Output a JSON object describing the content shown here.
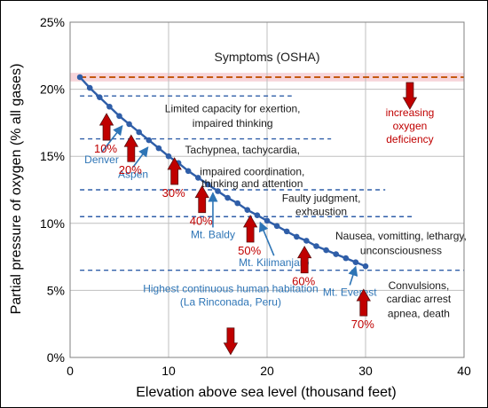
{
  "chart_data": {
    "type": "line",
    "xlabel": "Elevation above sea level (thousand feet)",
    "ylabel": "Partial pressure of oxygen (% all gases)",
    "xlim": [
      0,
      40
    ],
    "ylim": [
      0,
      25
    ],
    "xticks": [
      0,
      10,
      20,
      30,
      40
    ],
    "xtick_labels": [
      "0",
      "10",
      "20",
      "30",
      "40"
    ],
    "yticks": [
      0,
      5,
      10,
      15,
      20,
      25
    ],
    "ytick_labels": [
      "0%",
      "5%",
      "10%",
      "15%",
      "20%",
      "25%"
    ],
    "grid": true,
    "series": [
      {
        "x": [
          1,
          2,
          3,
          4,
          5,
          6,
          7,
          8,
          9,
          10,
          11,
          12,
          13,
          14,
          15,
          16,
          17,
          18,
          19,
          20,
          21,
          22,
          23,
          24,
          25,
          26,
          27,
          28,
          29,
          30
        ],
        "y": [
          20.9,
          20.1,
          19.4,
          18.7,
          18.0,
          17.4,
          16.8,
          16.2,
          15.6,
          15.0,
          14.5,
          13.9,
          13.4,
          12.9,
          12.4,
          11.9,
          11.5,
          11.0,
          10.6,
          10.2,
          9.8,
          9.4,
          9.0,
          8.7,
          8.3,
          8.0,
          7.7,
          7.4,
          7.1,
          6.8
        ],
        "color": "#2f5ea8"
      }
    ],
    "threshold_lines": [
      {
        "y": 20.9,
        "x_range": [
          1,
          40
        ],
        "style": "dashed",
        "color": "#c55a11"
      },
      {
        "y": 19.5,
        "x_range": [
          1,
          22.5
        ],
        "style": "dashed",
        "color": "#2f5ea8"
      },
      {
        "y": 16.3,
        "x_range": [
          1,
          26.5
        ],
        "style": "dashed",
        "color": "#2f5ea8"
      },
      {
        "y": 12.5,
        "x_range": [
          1,
          32
        ],
        "style": "dashed",
        "color": "#2f5ea8"
      },
      {
        "y": 10.5,
        "x_range": [
          1,
          35
        ],
        "style": "dashed",
        "color": "#2f5ea8"
      },
      {
        "y": 6.5,
        "x_range": [
          1,
          40
        ],
        "style": "dashed",
        "color": "#2f5ea8"
      }
    ],
    "symptom_labels": [
      {
        "text": "Symptoms (OSHA)",
        "x": 20,
        "y": 22.1,
        "color": "#1a1a1a"
      },
      {
        "text": "Limited capacity for exertion,",
        "x": 16.5,
        "y": 18.3,
        "color": "#1a1a1a"
      },
      {
        "text": "impaired thinking",
        "x": 16.5,
        "y": 17.2,
        "color": "#1a1a1a"
      },
      {
        "text": "Tachypnea, tachycardia,",
        "x": 17.5,
        "y": 15.2,
        "color": "#1a1a1a"
      },
      {
        "text": "impaired coordination,",
        "x": 18.5,
        "y": 13.6,
        "color": "#1a1a1a"
      },
      {
        "text": "thinking and attention",
        "x": 18.5,
        "y": 12.7,
        "color": "#1a1a1a"
      },
      {
        "text": "Faulty judgment,",
        "x": 25.5,
        "y": 11.6,
        "color": "#1a1a1a"
      },
      {
        "text": "exhaustion",
        "x": 25.5,
        "y": 10.6,
        "color": "#1a1a1a"
      },
      {
        "text": "Nausea, vomitting, lethargy,",
        "x": 33.6,
        "y": 8.8,
        "color": "#1a1a1a"
      },
      {
        "text": "unconsciousness",
        "x": 33.6,
        "y": 7.7,
        "color": "#1a1a1a"
      },
      {
        "text": "Convulsions,",
        "x": 35.4,
        "y": 5.1,
        "color": "#1a1a1a"
      },
      {
        "text": "cardiac arrest",
        "x": 35.4,
        "y": 4.1,
        "color": "#1a1a1a"
      },
      {
        "text": "apnea, death",
        "x": 35.4,
        "y": 3.0,
        "color": "#1a1a1a"
      },
      {
        "text": "increasing",
        "x": 34.5,
        "y": 18.0,
        "color": "#c00000"
      },
      {
        "text": "oxygen",
        "x": 34.5,
        "y": 17.0,
        "color": "#c00000"
      },
      {
        "text": "deficiency",
        "x": 34.5,
        "y": 16.0,
        "color": "#c00000"
      }
    ],
    "arrows": [
      {
        "x": 3.7,
        "y": 16.2,
        "label": "10%"
      },
      {
        "x": 6.2,
        "y": 14.6,
        "label": "20%"
      },
      {
        "x": 10.6,
        "y": 12.9,
        "label": "30%"
      },
      {
        "x": 13.4,
        "y": 10.8,
        "label": "40%"
      },
      {
        "x": 18.3,
        "y": 8.6,
        "label": "50%"
      },
      {
        "x": 23.8,
        "y": 6.3,
        "label": "60%"
      },
      {
        "x": 29.8,
        "y": 3.1,
        "label": "70%"
      },
      {
        "x": 34.5,
        "y": 20.5,
        "label": ""
      }
    ],
    "down_arrows": [
      {
        "x": 16.3,
        "y": 2.2
      }
    ],
    "locations": [
      {
        "name": "Denver",
        "point": [
          5.3,
          17.6
        ],
        "text_at": [
          3.2,
          14.5
        ]
      },
      {
        "name": "Aspen",
        "point": [
          7.9,
          16.0
        ],
        "text_at": [
          6.4,
          13.4
        ]
      },
      {
        "name": "Mt. Baldy",
        "point": [
          14.5,
          12.6
        ],
        "text_at": [
          14.5,
          8.9
        ]
      },
      {
        "name": "Mt. Kilimanjaro",
        "point": [
          19.3,
          10.4
        ],
        "text_at": [
          20.7,
          6.8
        ]
      },
      {
        "name": "Mt. Everest",
        "point": [
          29.0,
          7.1
        ],
        "text_at": [
          28.4,
          4.6
        ]
      }
    ],
    "habitation_label": [
      "Highest continuous human habitation",
      "(La Rinconada, Peru)"
    ],
    "habitation_anchor": [
      16.3,
      3.4
    ],
    "colors": {
      "curve": "#2f5ea8",
      "threshold": "#2f5ea8",
      "osha_line": "#c55a11",
      "arrow_fill": "#c00000",
      "arrow_label": "#c00000",
      "location_text": "#2e75b6",
      "grid": "#bfbfbf",
      "pink_band": "#f7d5da"
    }
  }
}
